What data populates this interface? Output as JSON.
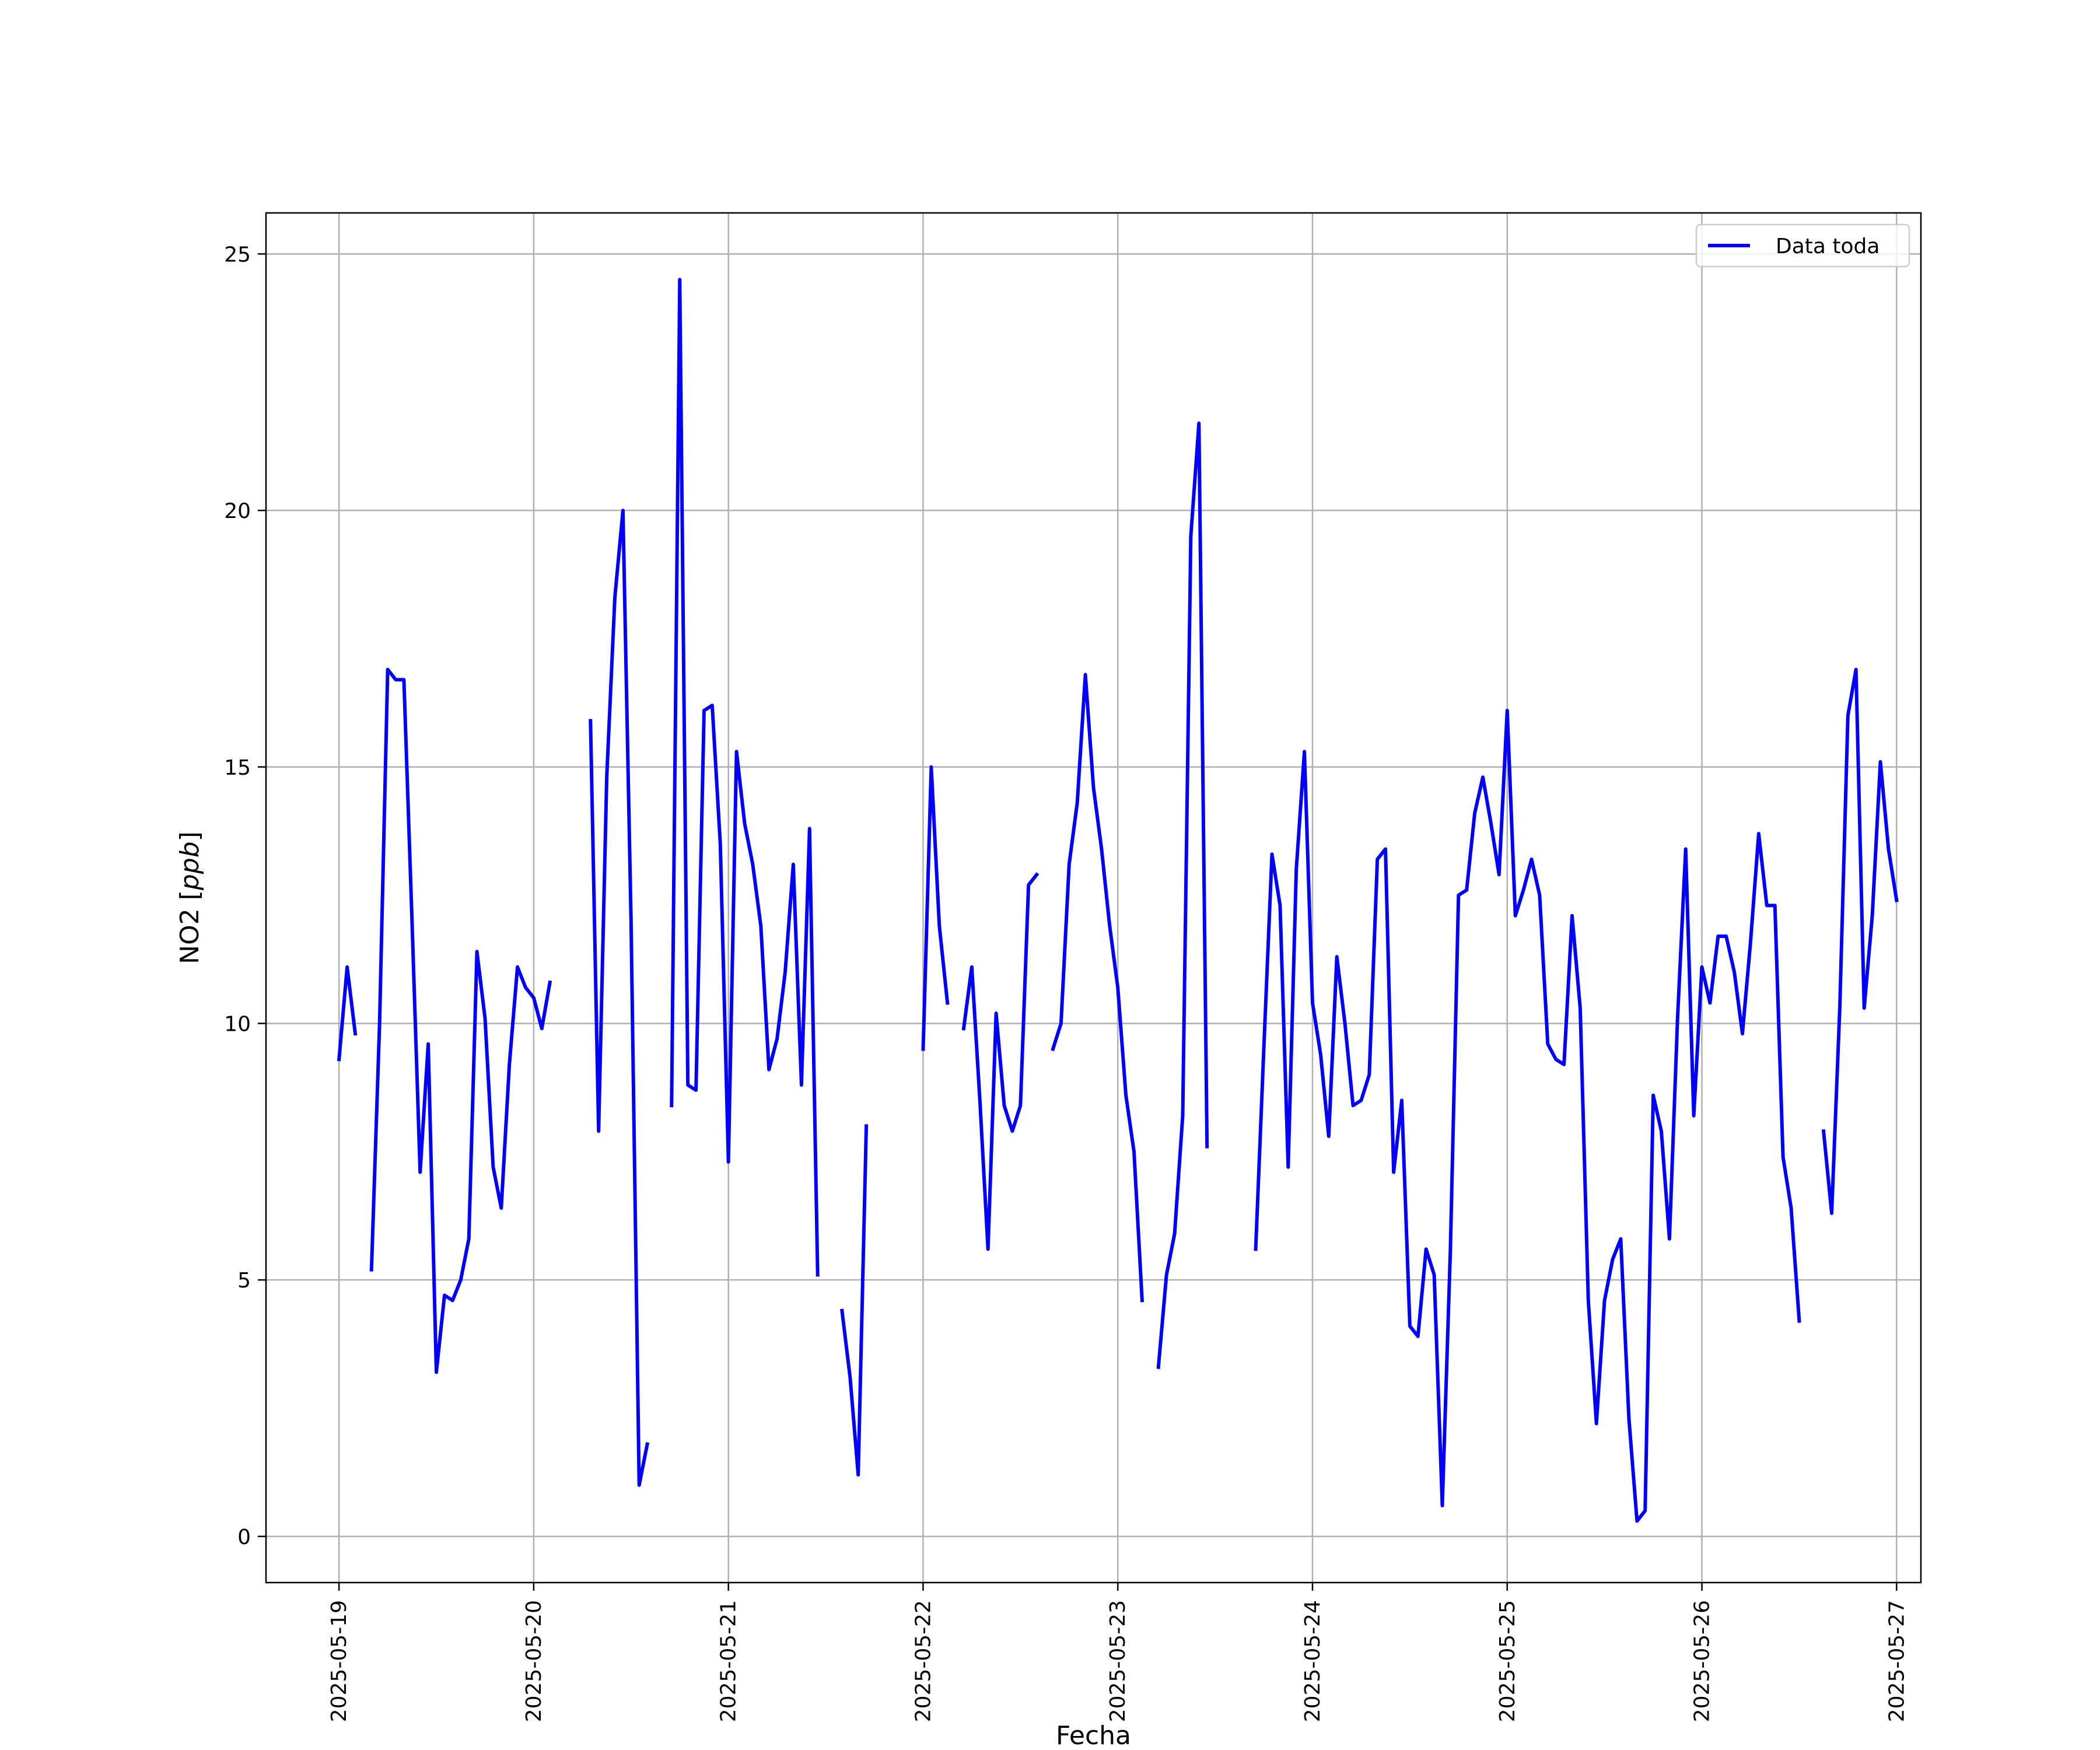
{
  "chart_data": {
    "type": "line",
    "xlabel": "Fecha",
    "ylabel": "NO2",
    "ylabel_unit": "ppb",
    "ylim": [
      -0.9,
      25.8
    ],
    "xlim": [
      "2025-05-18T15:00",
      "2025-05-27T03:00"
    ],
    "y_ticks": [
      0,
      5,
      10,
      15,
      20,
      25
    ],
    "x_ticks": [
      "2025-05-19",
      "2025-05-20",
      "2025-05-21",
      "2025-05-22",
      "2025-05-23",
      "2025-05-24",
      "2025-05-25",
      "2025-05-26",
      "2025-05-27"
    ],
    "grid": true,
    "legend_position": "upper right",
    "series": [
      {
        "name": "Data toda",
        "color": "#0000ff",
        "segments": [
          [
            [
              "2025-05-19T00:00",
              9.3
            ],
            [
              "2025-05-19T01:00",
              11.1
            ],
            [
              "2025-05-19T02:00",
              9.8
            ]
          ],
          [
            [
              "2025-05-19T04:00",
              5.2
            ],
            [
              "2025-05-19T05:00",
              10.0
            ],
            [
              "2025-05-19T06:00",
              16.9
            ],
            [
              "2025-05-19T07:00",
              16.7
            ],
            [
              "2025-05-19T08:00",
              16.7
            ],
            [
              "2025-05-19T09:00",
              12.0
            ],
            [
              "2025-05-19T10:00",
              7.1
            ],
            [
              "2025-05-19T11:00",
              9.6
            ],
            [
              "2025-05-19T12:00",
              3.2
            ],
            [
              "2025-05-19T13:00",
              4.7
            ],
            [
              "2025-05-19T14:00",
              4.6
            ],
            [
              "2025-05-19T15:00",
              5.0
            ],
            [
              "2025-05-19T16:00",
              5.8
            ],
            [
              "2025-05-19T17:00",
              11.4
            ],
            [
              "2025-05-19T18:00",
              10.1
            ],
            [
              "2025-05-19T19:00",
              7.2
            ],
            [
              "2025-05-19T20:00",
              6.4
            ],
            [
              "2025-05-19T21:00",
              9.2
            ],
            [
              "2025-05-19T22:00",
              11.1
            ],
            [
              "2025-05-19T23:00",
              10.7
            ],
            [
              "2025-05-20T00:00",
              10.5
            ],
            [
              "2025-05-20T01:00",
              9.9
            ],
            [
              "2025-05-20T02:00",
              10.8
            ]
          ],
          [
            [
              "2025-05-20T07:00",
              15.9
            ],
            [
              "2025-05-20T08:00",
              7.9
            ],
            [
              "2025-05-20T09:00",
              14.8
            ],
            [
              "2025-05-20T10:00",
              18.3
            ],
            [
              "2025-05-20T11:00",
              20.0
            ],
            [
              "2025-05-20T12:00",
              12.0
            ],
            [
              "2025-05-20T13:00",
              1.0
            ],
            [
              "2025-05-20T14:00",
              1.8
            ]
          ],
          [
            [
              "2025-05-20T17:00",
              8.4
            ],
            [
              "2025-05-20T18:00",
              24.5
            ],
            [
              "2025-05-20T19:00",
              8.8
            ],
            [
              "2025-05-20T20:00",
              8.7
            ],
            [
              "2025-05-20T21:00",
              16.1
            ],
            [
              "2025-05-20T22:00",
              16.2
            ],
            [
              "2025-05-20T23:00",
              13.5
            ],
            [
              "2025-05-21T00:00",
              7.3
            ],
            [
              "2025-05-21T01:00",
              15.3
            ],
            [
              "2025-05-21T02:00",
              13.9
            ],
            [
              "2025-05-21T03:00",
              13.1
            ],
            [
              "2025-05-21T04:00",
              11.9
            ],
            [
              "2025-05-21T05:00",
              9.1
            ],
            [
              "2025-05-21T06:00",
              9.7
            ],
            [
              "2025-05-21T07:00",
              11.0
            ],
            [
              "2025-05-21T08:00",
              13.1
            ],
            [
              "2025-05-21T09:00",
              8.8
            ],
            [
              "2025-05-21T10:00",
              13.8
            ],
            [
              "2025-05-21T11:00",
              5.1
            ]
          ],
          [
            [
              "2025-05-21T14:00",
              4.4
            ],
            [
              "2025-05-21T15:00",
              3.1
            ],
            [
              "2025-05-21T16:00",
              1.2
            ],
            [
              "2025-05-21T17:00",
              8.0
            ]
          ],
          [
            [
              "2025-05-22T00:00",
              9.5
            ],
            [
              "2025-05-22T01:00",
              15.0
            ],
            [
              "2025-05-22T02:00",
              11.9
            ],
            [
              "2025-05-22T03:00",
              10.4
            ]
          ],
          [
            [
              "2025-05-22T05:00",
              9.9
            ],
            [
              "2025-05-22T06:00",
              11.1
            ],
            [
              "2025-05-22T07:00",
              8.5
            ],
            [
              "2025-05-22T08:00",
              5.6
            ],
            [
              "2025-05-22T09:00",
              10.2
            ],
            [
              "2025-05-22T10:00",
              8.4
            ],
            [
              "2025-05-22T11:00",
              7.9
            ],
            [
              "2025-05-22T12:00",
              8.4
            ],
            [
              "2025-05-22T13:00",
              12.7
            ],
            [
              "2025-05-22T14:00",
              12.9
            ]
          ],
          [
            [
              "2025-05-22T16:00",
              9.5
            ],
            [
              "2025-05-22T17:00",
              10.0
            ],
            [
              "2025-05-22T18:00",
              13.1
            ],
            [
              "2025-05-22T19:00",
              14.3
            ],
            [
              "2025-05-22T20:00",
              16.8
            ],
            [
              "2025-05-22T21:00",
              14.6
            ],
            [
              "2025-05-22T22:00",
              13.4
            ],
            [
              "2025-05-22T23:00",
              11.9
            ],
            [
              "2025-05-23T00:00",
              10.7
            ],
            [
              "2025-05-23T01:00",
              8.6
            ],
            [
              "2025-05-23T02:00",
              7.5
            ],
            [
              "2025-05-23T03:00",
              4.6
            ]
          ],
          [
            [
              "2025-05-23T05:00",
              3.3
            ],
            [
              "2025-05-23T06:00",
              5.1
            ],
            [
              "2025-05-23T07:00",
              5.9
            ],
            [
              "2025-05-23T08:00",
              8.2
            ],
            [
              "2025-05-23T09:00",
              19.5
            ],
            [
              "2025-05-23T10:00",
              21.7
            ],
            [
              "2025-05-23T11:00",
              7.6
            ]
          ],
          [
            [
              "2025-05-23T17:00",
              5.6
            ],
            [
              "2025-05-23T18:00",
              9.5
            ],
            [
              "2025-05-23T19:00",
              13.3
            ],
            [
              "2025-05-23T20:00",
              12.3
            ],
            [
              "2025-05-23T21:00",
              7.2
            ],
            [
              "2025-05-23T22:00",
              13.0
            ],
            [
              "2025-05-23T23:00",
              15.3
            ],
            [
              "2025-05-24T00:00",
              10.4
            ],
            [
              "2025-05-24T01:00",
              9.4
            ],
            [
              "2025-05-24T02:00",
              7.8
            ],
            [
              "2025-05-24T03:00",
              11.3
            ],
            [
              "2025-05-24T04:00",
              10.0
            ],
            [
              "2025-05-24T05:00",
              8.4
            ],
            [
              "2025-05-24T06:00",
              8.5
            ],
            [
              "2025-05-24T07:00",
              9.0
            ],
            [
              "2025-05-24T08:00",
              13.2
            ],
            [
              "2025-05-24T09:00",
              13.4
            ],
            [
              "2025-05-24T10:00",
              7.1
            ],
            [
              "2025-05-24T11:00",
              8.5
            ],
            [
              "2025-05-24T12:00",
              4.1
            ],
            [
              "2025-05-24T13:00",
              3.9
            ],
            [
              "2025-05-24T14:00",
              5.6
            ],
            [
              "2025-05-24T15:00",
              5.1
            ],
            [
              "2025-05-24T16:00",
              0.6
            ],
            [
              "2025-05-24T17:00",
              5.6
            ],
            [
              "2025-05-24T18:00",
              12.5
            ],
            [
              "2025-05-24T19:00",
              12.6
            ],
            [
              "2025-05-24T20:00",
              14.1
            ],
            [
              "2025-05-24T21:00",
              14.8
            ],
            [
              "2025-05-24T22:00",
              13.9
            ],
            [
              "2025-05-24T23:00",
              12.9
            ],
            [
              "2025-05-25T00:00",
              16.1
            ],
            [
              "2025-05-25T01:00",
              12.1
            ],
            [
              "2025-05-25T02:00",
              12.6
            ],
            [
              "2025-05-25T03:00",
              13.2
            ],
            [
              "2025-05-25T04:00",
              12.5
            ],
            [
              "2025-05-25T05:00",
              9.6
            ],
            [
              "2025-05-25T06:00",
              9.3
            ],
            [
              "2025-05-25T07:00",
              9.2
            ],
            [
              "2025-05-25T08:00",
              12.1
            ],
            [
              "2025-05-25T09:00",
              10.3
            ],
            [
              "2025-05-25T10:00",
              4.6
            ],
            [
              "2025-05-25T11:00",
              2.2
            ],
            [
              "2025-05-25T12:00",
              4.6
            ],
            [
              "2025-05-25T13:00",
              5.4
            ],
            [
              "2025-05-25T14:00",
              5.8
            ],
            [
              "2025-05-25T15:00",
              2.3
            ],
            [
              "2025-05-25T16:00",
              0.3
            ],
            [
              "2025-05-25T17:00",
              0.5
            ],
            [
              "2025-05-25T18:00",
              8.6
            ],
            [
              "2025-05-25T19:00",
              7.9
            ],
            [
              "2025-05-25T20:00",
              5.8
            ],
            [
              "2025-05-25T21:00",
              10.1
            ],
            [
              "2025-05-25T22:00",
              13.4
            ],
            [
              "2025-05-25T23:00",
              8.2
            ],
            [
              "2025-05-26T00:00",
              11.1
            ],
            [
              "2025-05-26T01:00",
              10.4
            ],
            [
              "2025-05-26T02:00",
              11.7
            ],
            [
              "2025-05-26T03:00",
              11.7
            ],
            [
              "2025-05-26T04:00",
              11.0
            ],
            [
              "2025-05-26T05:00",
              9.8
            ],
            [
              "2025-05-26T06:00",
              11.6
            ],
            [
              "2025-05-26T07:00",
              13.7
            ],
            [
              "2025-05-26T08:00",
              12.3
            ],
            [
              "2025-05-26T09:00",
              12.3
            ],
            [
              "2025-05-26T10:00",
              7.4
            ],
            [
              "2025-05-26T11:00",
              6.4
            ],
            [
              "2025-05-26T12:00",
              4.2
            ]
          ],
          [
            [
              "2025-05-26T15:00",
              7.9
            ],
            [
              "2025-05-26T16:00",
              6.3
            ],
            [
              "2025-05-26T17:00",
              10.3
            ],
            [
              "2025-05-26T18:00",
              16.0
            ],
            [
              "2025-05-26T19:00",
              16.9
            ],
            [
              "2025-05-26T20:00",
              10.3
            ],
            [
              "2025-05-26T21:00",
              12.1
            ],
            [
              "2025-05-26T22:00",
              15.1
            ],
            [
              "2025-05-26T23:00",
              13.4
            ],
            [
              "2025-05-27T00:00",
              12.4
            ]
          ]
        ]
      }
    ]
  }
}
